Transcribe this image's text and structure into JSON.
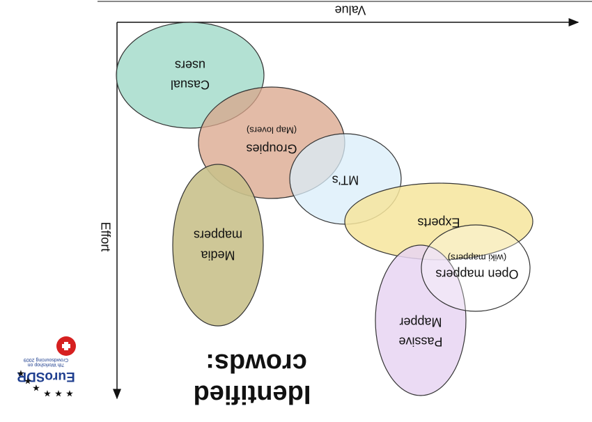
{
  "axes": {
    "x": "Value",
    "y": "Effort"
  },
  "groups": [
    {
      "lines": [
        "Casual",
        "users"
      ]
    },
    {
      "lines": [
        "Groupies",
        "(Map lovers)"
      ]
    },
    {
      "lines": [
        "MT's"
      ]
    },
    {
      "lines": [
        "Media",
        "mappers"
      ]
    },
    {
      "lines": [
        "Experts"
      ]
    },
    {
      "lines": [
        "Open mappers",
        "(wiki mappers)"
      ]
    },
    {
      "lines": [
        "Passive",
        "Mapper"
      ]
    }
  ],
  "title": [
    "Identified",
    "crowds:"
  ],
  "logo": {
    "name": "EuroSDR",
    "line1": "7th Workshop on",
    "line2": "Crowdsourcing 2009"
  }
}
